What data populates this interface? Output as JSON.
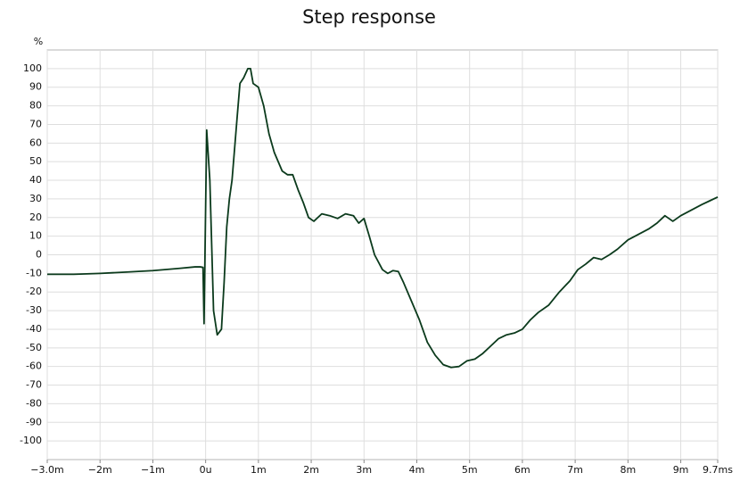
{
  "chart_data": {
    "type": "line",
    "title": "Step response",
    "y_label": "%",
    "color": "#0b3a1c",
    "grid": true,
    "xlim": [
      -3.0,
      9.7
    ],
    "ylim": [
      -110,
      110
    ],
    "xticks": [
      {
        "value": -3,
        "label": "−3.0m"
      },
      {
        "value": -2,
        "label": "−2m"
      },
      {
        "value": -1,
        "label": "−1m"
      },
      {
        "value": 0,
        "label": "0u"
      },
      {
        "value": 1,
        "label": "1m"
      },
      {
        "value": 2,
        "label": "2m"
      },
      {
        "value": 3,
        "label": "3m"
      },
      {
        "value": 4,
        "label": "4m"
      },
      {
        "value": 5,
        "label": "5m"
      },
      {
        "value": 6,
        "label": "6m"
      },
      {
        "value": 7,
        "label": "7m"
      },
      {
        "value": 8,
        "label": "8m"
      },
      {
        "value": 9,
        "label": "9m"
      },
      {
        "value": 9.7,
        "label": "9.7ms"
      }
    ],
    "yticks": [
      100,
      90,
      80,
      70,
      60,
      50,
      40,
      30,
      20,
      10,
      0,
      -10,
      -20,
      -30,
      -40,
      -50,
      -60,
      -70,
      -80,
      -90,
      -100
    ],
    "x": [
      -3.0,
      -2.5,
      -2.0,
      -1.5,
      -1.0,
      -0.5,
      -0.2,
      -0.1,
      -0.05,
      -0.03,
      0.02,
      0.08,
      0.15,
      0.22,
      0.3,
      0.35,
      0.4,
      0.45,
      0.5,
      0.6,
      0.65,
      0.72,
      0.8,
      0.85,
      0.9,
      1.0,
      1.1,
      1.2,
      1.3,
      1.45,
      1.55,
      1.65,
      1.75,
      1.85,
      1.95,
      2.05,
      2.2,
      2.35,
      2.5,
      2.65,
      2.8,
      2.9,
      3.0,
      3.1,
      3.2,
      3.35,
      3.45,
      3.55,
      3.65,
      3.75,
      3.9,
      4.05,
      4.2,
      4.35,
      4.5,
      4.65,
      4.8,
      4.95,
      5.1,
      5.25,
      5.4,
      5.55,
      5.7,
      5.85,
      6.0,
      6.15,
      6.3,
      6.5,
      6.7,
      6.9,
      7.05,
      7.2,
      7.35,
      7.5,
      7.65,
      7.8,
      8.0,
      8.2,
      8.4,
      8.55,
      8.7,
      8.85,
      9.0,
      9.2,
      9.4,
      9.55,
      9.7
    ],
    "values": [
      -10.5,
      -10.5,
      -10,
      -9.3,
      -8.5,
      -7.3,
      -6.5,
      -6.5,
      -6.8,
      -37,
      67,
      40,
      -30,
      -43,
      -40,
      -15,
      15,
      30,
      40,
      75,
      92,
      95,
      100,
      100,
      92,
      90,
      80,
      65,
      55,
      45,
      43,
      43,
      35,
      28,
      20,
      18,
      22,
      21,
      19.5,
      22,
      21,
      17,
      19.5,
      10,
      0,
      -8,
      -10,
      -8.5,
      -9,
      -15,
      -25,
      -35,
      -47,
      -54,
      -59,
      -60.5,
      -60,
      -57,
      -56,
      -53,
      -49,
      -45,
      -43,
      -42,
      -40,
      -35,
      -31,
      -27,
      -20,
      -14,
      -8,
      -5,
      -1.5,
      -2.5,
      0,
      3,
      8,
      11,
      14,
      17,
      21,
      18,
      21,
      24,
      27,
      29,
      31
    ]
  }
}
